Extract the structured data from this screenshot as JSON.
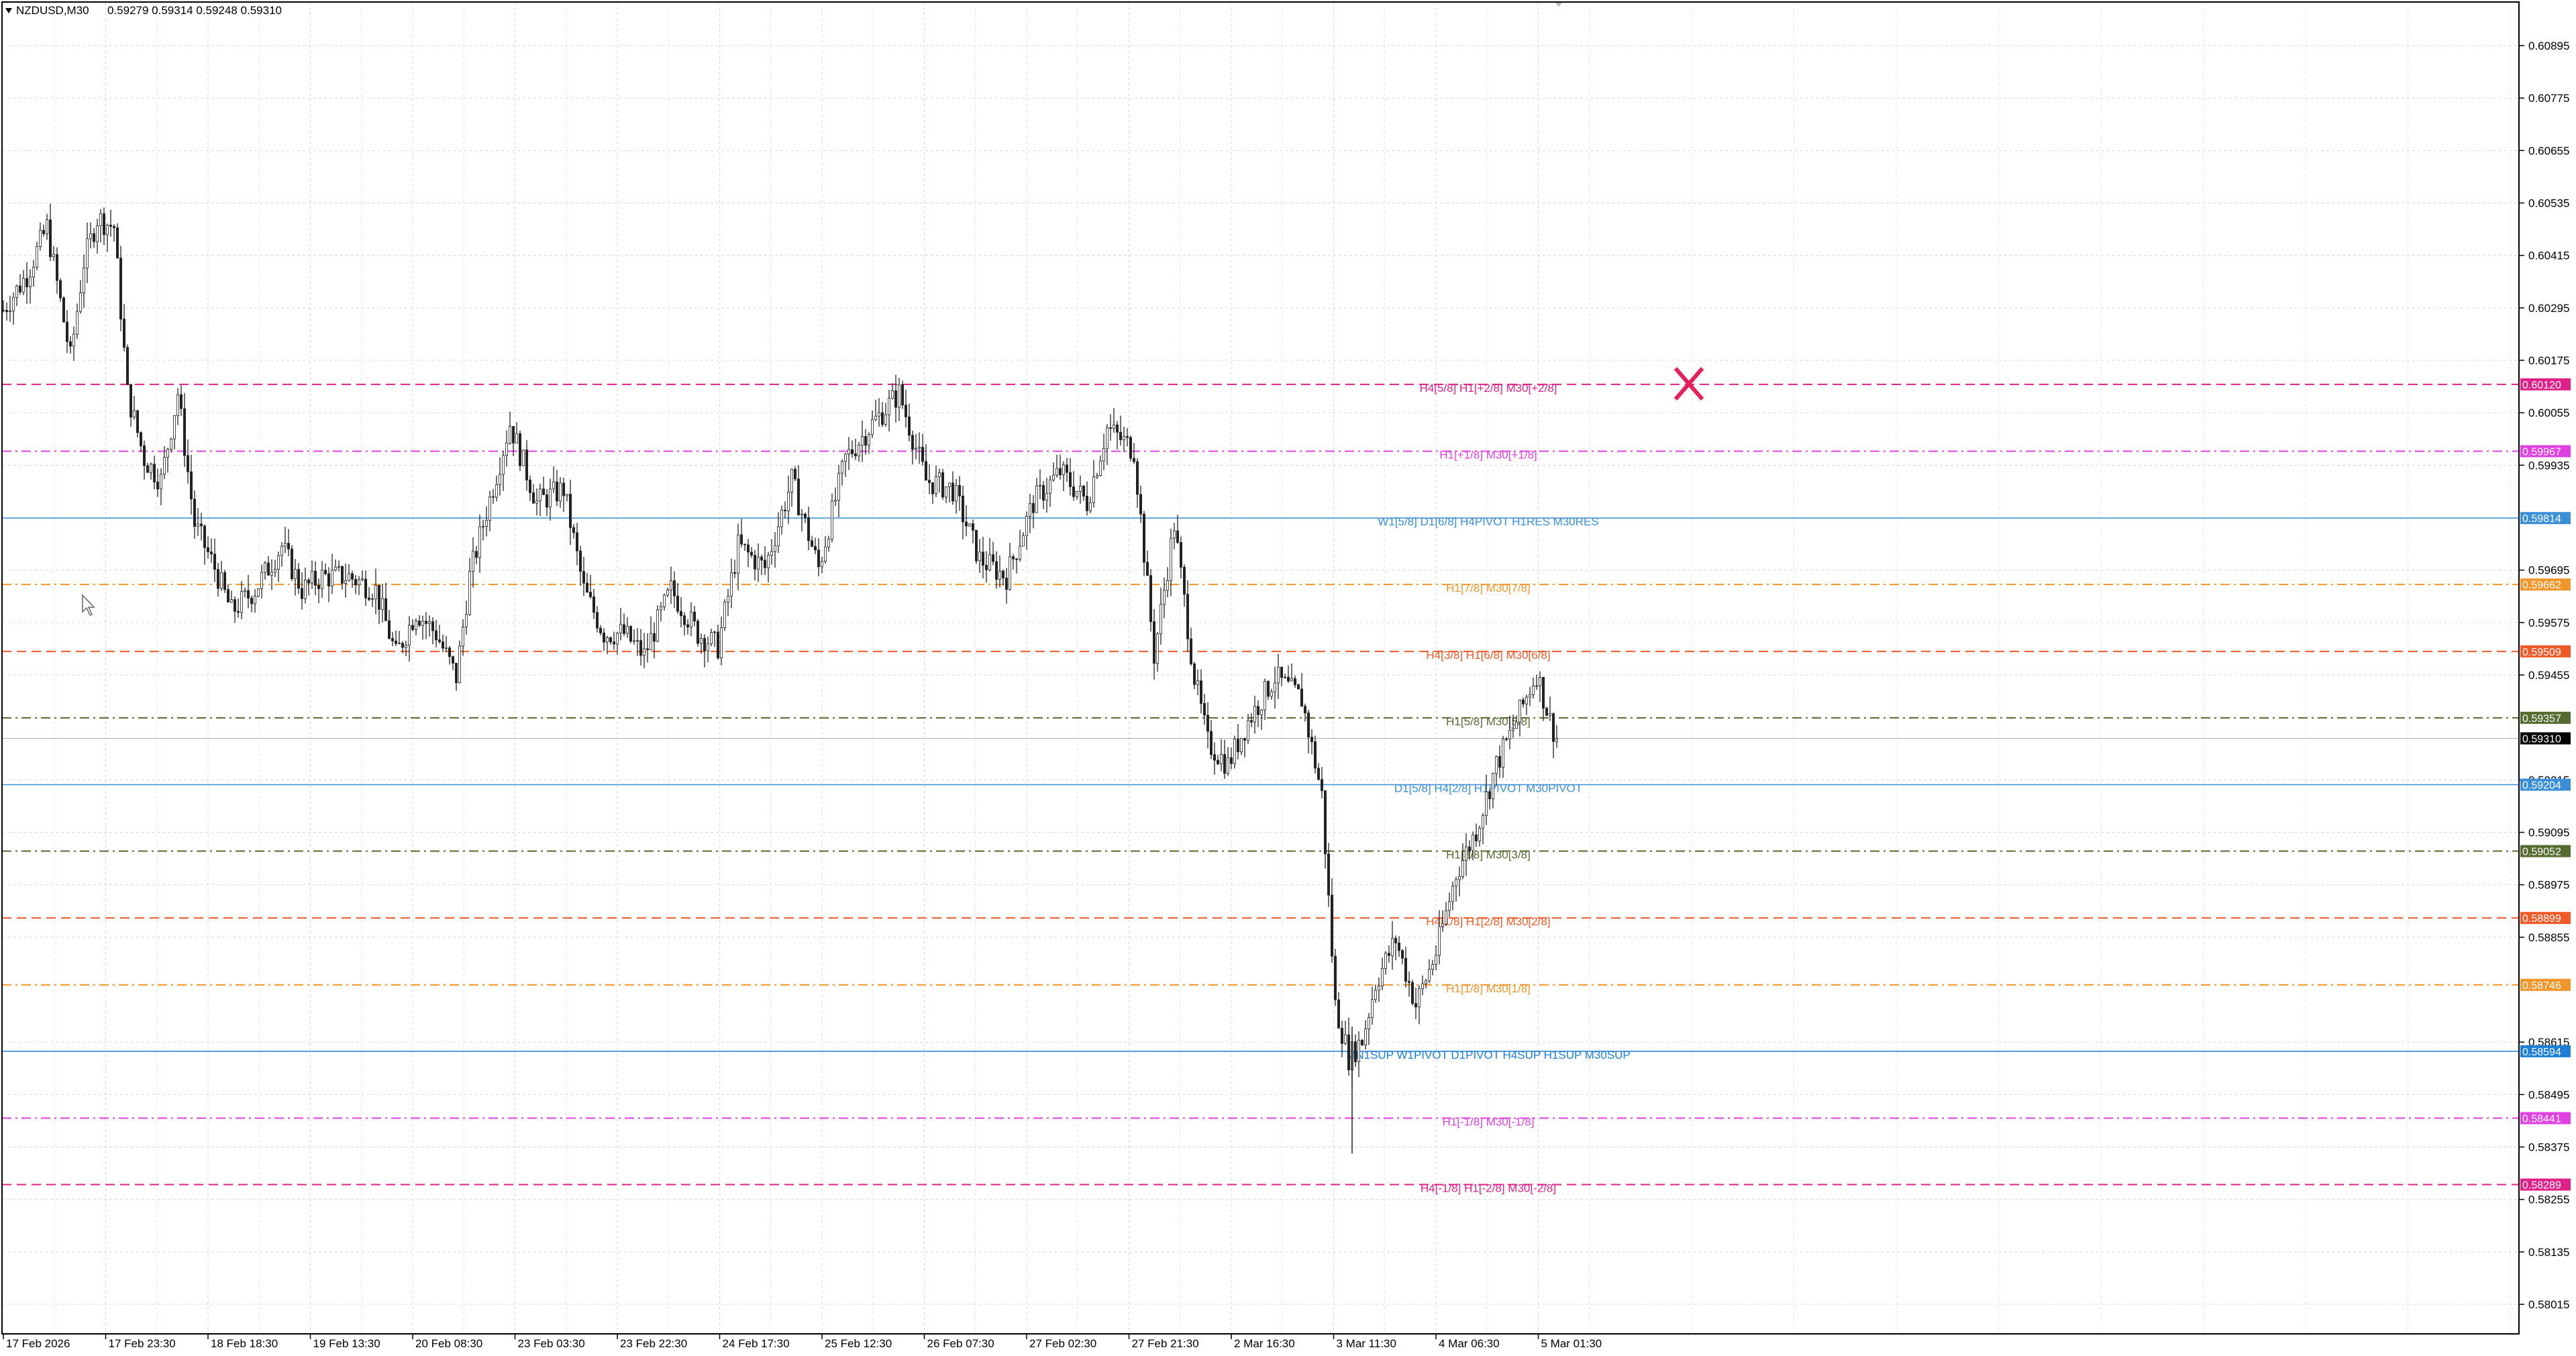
{
  "header": {
    "symbol": "NZDUSD,M30",
    "ohlc": "0.59279 0.59314 0.59248 0.59310"
  },
  "price_axis": {
    "labels": [
      "0.60895",
      "0.60775",
      "0.60655",
      "0.60535",
      "0.60415",
      "0.60295",
      "0.60175",
      "0.60055",
      "0.59935",
      "0.59695",
      "0.59575",
      "0.59455",
      "0.59215",
      "0.59095",
      "0.58975",
      "0.58855",
      "0.58615",
      "0.58495",
      "0.58375",
      "0.58255",
      "0.58135",
      "0.58015"
    ]
  },
  "time_axis": {
    "labels": [
      "17 Feb 2026",
      "17 Feb 23:30",
      "18 Feb 18:30",
      "19 Feb 13:30",
      "20 Feb 08:30",
      "23 Feb 03:30",
      "23 Feb 22:30",
      "24 Feb 17:30",
      "25 Feb 12:30",
      "26 Feb 07:30",
      "27 Feb 02:30",
      "27 Feb 21:30",
      "2 Mar 16:30",
      "3 Mar 11:30",
      "4 Mar 06:30",
      "5 Mar 01:30"
    ]
  },
  "current_price": {
    "value": "0.59310",
    "bg": "#000000"
  },
  "levels": [
    {
      "price": 0.6012,
      "tag": "0.60120",
      "label": "H4[5/8] H1[+2/8] M30[+2/8]",
      "color": "#e0218a",
      "style": "dash"
    },
    {
      "price": 0.59967,
      "tag": "0.59967",
      "label": "H1[+1/8] M30[+1/8]",
      "color": "#e040e0",
      "style": "dashdot"
    },
    {
      "price": 0.59814,
      "tag": "0.59814",
      "label": "W1[5/8] D1[6/8] H4PIVOT H1RES M30RES",
      "color": "#3b8fd6",
      "style": "solid"
    },
    {
      "price": 0.59662,
      "tag": "0.59662",
      "label": "H1[7/8] M30[7/8]",
      "color": "#f0962a",
      "style": "dashdot"
    },
    {
      "price": 0.59509,
      "tag": "0.59509",
      "label": "H4[3/8] H1[6/8] M30[6/8]",
      "color": "#f05a28",
      "style": "dash"
    },
    {
      "price": 0.59357,
      "tag": "0.59357",
      "label": "H1[5/8] M30[5/8]",
      "color": "#556b2f",
      "style": "dashdot"
    },
    {
      "price": 0.59204,
      "tag": "0.59204",
      "label": "D1[5/8] H4[2/8] H1PIVOT M30PIVOT",
      "color": "#3b8fd6",
      "style": "solid"
    },
    {
      "price": 0.59052,
      "tag": "0.59052",
      "label": "H1[3/8] M30[3/8]",
      "color": "#556b2f",
      "style": "dashdot"
    },
    {
      "price": 0.58899,
      "tag": "0.58899",
      "label": "H4[1/8] H1[2/8] M30[2/8]",
      "color": "#f05a28",
      "style": "dash"
    },
    {
      "price": 0.58746,
      "tag": "0.58746",
      "label": "H1[1/8] M30[1/8]",
      "color": "#f0962a",
      "style": "dashdot"
    },
    {
      "price": 0.58594,
      "tag": "0.58594",
      "label": "MN1SUP W1PIVOT D1PIVOT H4SUP H1SUP M30SUP",
      "color": "#1e7fd6",
      "style": "solid"
    },
    {
      "price": 0.58441,
      "tag": "0.58441",
      "label": "H1[-1/8] M30[-1/8]",
      "color": "#e040e0",
      "style": "dashdot"
    },
    {
      "price": 0.58289,
      "tag": "0.58289",
      "label": "H4[-1/8] H1[-2/8] M30[-2/8]",
      "color": "#e0218a",
      "style": "dash"
    }
  ],
  "chart_data": {
    "type": "candlestick",
    "title": "NZDUSD,M30",
    "y_range": [
      0.57955,
      0.60975
    ],
    "series": [
      {
        "close_path": [
          [
            0.6029,
            0.6034,
            0.6032,
            0.6043,
            0.6051,
            0.604,
            0.603,
            0.6012,
            0.6035,
            0.6048,
            0.605,
            0.6052,
            0.603,
            0.6015,
            0.5998,
            0.5993,
            0.6002,
            0.601,
            0.599,
            0.5965,
            0.596,
            0.5969,
            0.5976,
            0.5983,
            0.597,
            0.5965,
            0.5975,
            0.5962,
            0.5951,
            0.5948,
            0.5943,
            0.5955,
            0.5953,
            0.5944,
            0.5975,
            0.6005,
            0.599,
            0.5988,
            0.5978,
            0.5983,
            0.5975,
            0.596,
            0.5958,
            0.595,
            0.5949,
            0.5967,
            0.5963,
            0.595,
            0.5958,
            0.5975,
            0.5983,
            0.599,
            0.5972,
            0.599,
            0.6005,
            0.601,
            0.6008,
            0.6003,
            0.5997,
            0.5975,
            0.596,
            0.5985,
            0.5995,
            0.599,
            0.5993,
            0.598,
            0.5985,
            0.6001,
            0.5985,
            0.5975,
            0.598,
            0.595,
            0.5975,
            0.5988,
            0.5965,
            0.5958,
            0.594,
            0.5922,
            0.5935,
            0.5945,
            0.5957,
            0.595,
            0.5938,
            0.5946,
            0.5953,
            0.5933,
            0.5946,
            0.595,
            0.5938
          ]
        ]
      }
    ]
  },
  "annotations": {
    "x_marker_color": "#e8205a"
  }
}
